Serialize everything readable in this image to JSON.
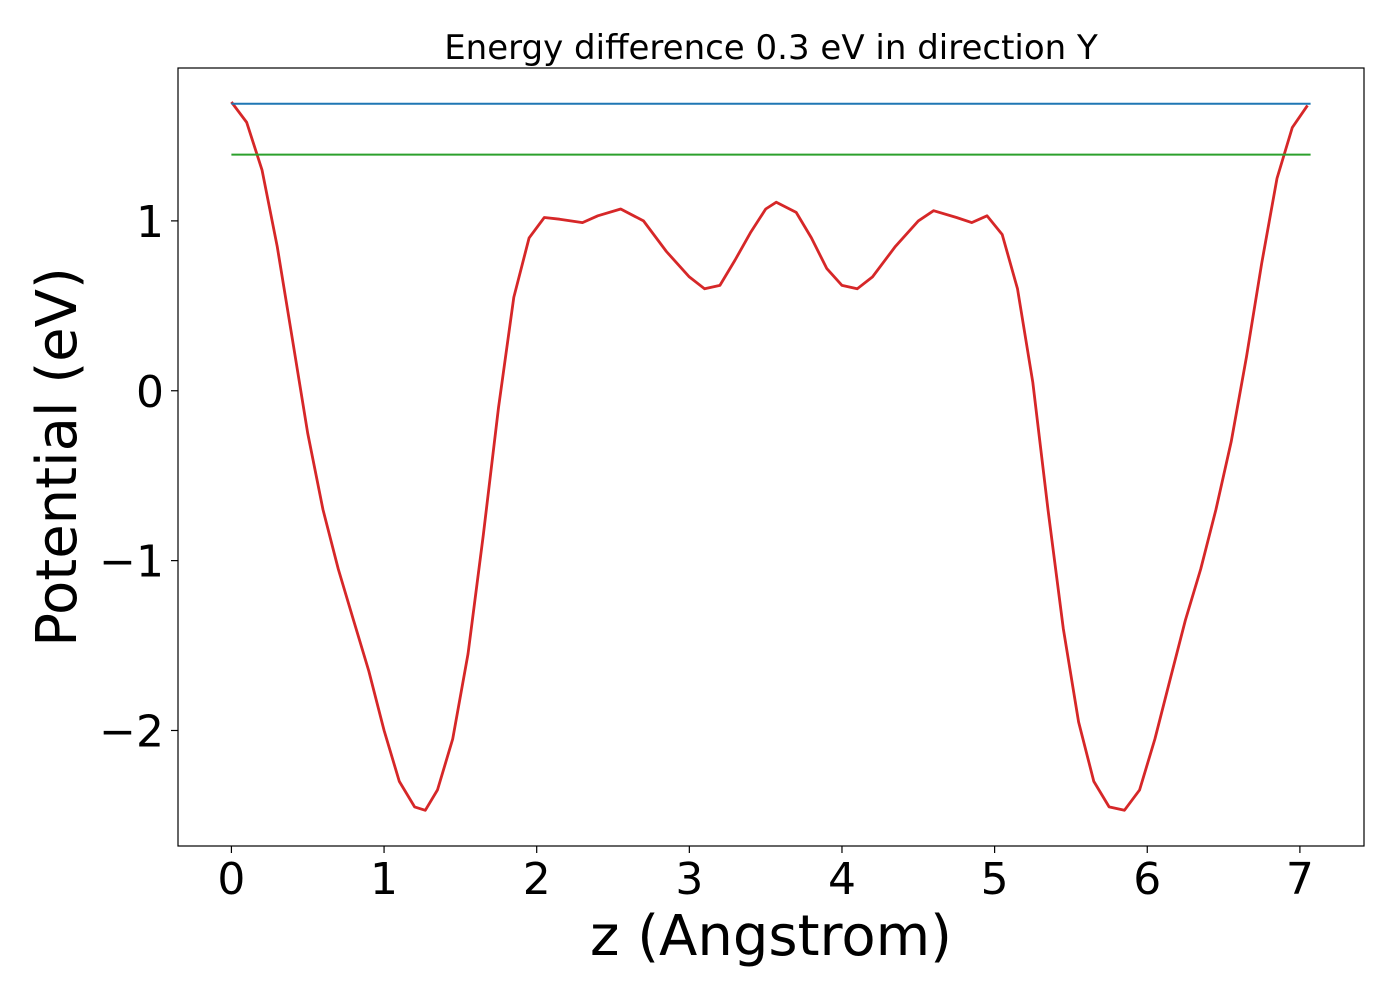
{
  "chart_data": {
    "type": "line",
    "title": "Energy difference 0.3 eV in direction Y",
    "xlabel": "z (Angstrom)",
    "ylabel": "Potential (eV)",
    "xlim": [
      -0.35,
      7.42
    ],
    "ylim": [
      -2.68,
      1.9
    ],
    "grid": false,
    "legend": "none",
    "xticks": [
      0,
      1,
      2,
      3,
      4,
      5,
      6,
      7
    ],
    "xtick_labels": [
      "0",
      "1",
      "2",
      "3",
      "4",
      "5",
      "6",
      "7"
    ],
    "yticks": [
      -2,
      -1,
      0,
      1
    ],
    "ytick_labels": [
      "−2",
      "−1",
      "0",
      "1"
    ],
    "series": [
      {
        "color": "#d62728",
        "x": [
          0,
          0.1,
          0.2,
          0.3,
          0.4,
          0.5,
          0.6,
          0.7,
          0.8,
          0.9,
          1.0,
          1.1,
          1.2,
          1.27,
          1.35,
          1.45,
          1.55,
          1.65,
          1.75,
          1.85,
          1.95,
          2.05,
          2.15,
          2.3,
          2.4,
          2.55,
          2.7,
          2.85,
          3.0,
          3.1,
          3.2,
          3.3,
          3.4,
          3.5,
          3.57,
          3.7,
          3.8,
          3.9,
          4.0,
          4.1,
          4.2,
          4.35,
          4.5,
          4.6,
          4.75,
          4.85,
          4.95,
          5.05,
          5.15,
          5.25,
          5.35,
          5.45,
          5.55,
          5.65,
          5.75,
          5.85,
          5.95,
          6.05,
          6.15,
          6.25,
          6.35,
          6.45,
          6.55,
          6.65,
          6.75,
          6.85,
          6.95,
          7.05
        ],
        "y": [
          1.7,
          1.58,
          1.3,
          0.85,
          0.3,
          -0.25,
          -0.7,
          -1.05,
          -1.35,
          -1.65,
          -2.0,
          -2.3,
          -2.45,
          -2.47,
          -2.35,
          -2.05,
          -1.55,
          -0.85,
          -0.1,
          0.55,
          0.9,
          1.02,
          1.01,
          0.99,
          1.03,
          1.07,
          1.0,
          0.82,
          0.67,
          0.6,
          0.62,
          0.77,
          0.93,
          1.07,
          1.11,
          1.05,
          0.9,
          0.72,
          0.62,
          0.6,
          0.67,
          0.85,
          1.0,
          1.06,
          1.02,
          0.99,
          1.03,
          0.92,
          0.6,
          0.05,
          -0.7,
          -1.4,
          -1.95,
          -2.3,
          -2.45,
          -2.47,
          -2.35,
          -2.05,
          -1.7,
          -1.35,
          -1.05,
          -0.7,
          -0.3,
          0.2,
          0.75,
          1.25,
          1.55,
          1.68
        ]
      },
      {
        "color": "#1f77b4",
        "x": [
          0,
          7.07
        ],
        "y": [
          1.69,
          1.69
        ]
      },
      {
        "color": "#2ca02c",
        "x": [
          0,
          7.07
        ],
        "y": [
          1.39,
          1.39
        ]
      }
    ]
  }
}
